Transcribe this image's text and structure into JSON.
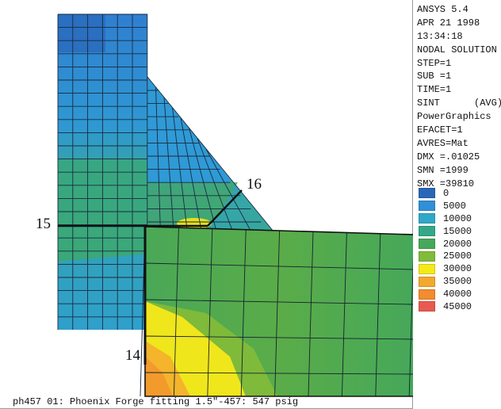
{
  "info_lines": [
    "ANSYS 5.4",
    "APR 21 1998",
    "13:34:18",
    "NODAL SOLUTION",
    "STEP=1",
    "SUB =1",
    "TIME=1",
    "SINT      (AVG)",
    "PowerGraphics",
    "EFACET=1",
    "AVRES=Mat",
    "DMX =.01025",
    "SMN =1999",
    "SMX =39810"
  ],
  "legend": [
    {
      "label": "0",
      "color": "#2a66b8"
    },
    {
      "label": "5000",
      "color": "#2f8fd8"
    },
    {
      "label": "10000",
      "color": "#2fa8c8"
    },
    {
      "label": "15000",
      "color": "#33a888"
    },
    {
      "label": "20000",
      "color": "#46a85a"
    },
    {
      "label": "25000",
      "color": "#80bb3a"
    },
    {
      "label": "30000",
      "color": "#f4ea18"
    },
    {
      "label": "35000",
      "color": "#f4a82c"
    },
    {
      "label": "40000",
      "color": "#f28c2c"
    },
    {
      "label": "45000",
      "color": "#e85a50"
    }
  ],
  "node_labels": {
    "n15": "15",
    "n16": "16",
    "n14": "14"
  },
  "footer": "ph457 01: Phoenix Forge fitting 1.5\"-457: 547 psig"
}
